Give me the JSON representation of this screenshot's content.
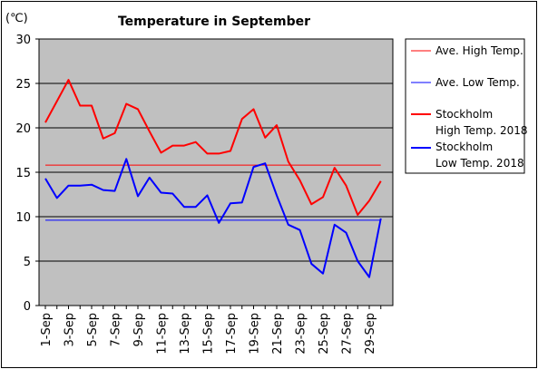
{
  "chart_data": {
    "type": "line",
    "title": "Temperature in September",
    "unit": "(℃)",
    "xlabel": "",
    "ylabel": "",
    "ylim": [
      0,
      30
    ],
    "yticks": [
      "0",
      "5",
      "10",
      "15",
      "20",
      "25",
      "30"
    ],
    "x": [
      1,
      2,
      3,
      4,
      5,
      6,
      7,
      8,
      9,
      10,
      11,
      12,
      13,
      14,
      15,
      16,
      17,
      18,
      19,
      20,
      21,
      22,
      23,
      24,
      25,
      26,
      27,
      28,
      29,
      30
    ],
    "xtick_labels": [
      "1-Sep",
      "3-Sep",
      "5-Sep",
      "7-Sep",
      "9-Sep",
      "11-Sep",
      "13-Sep",
      "15-Sep",
      "17-Sep",
      "19-Sep",
      "21-Sep",
      "23-Sep",
      "25-Sep",
      "27-Sep",
      "29-Sep"
    ],
    "grid": "horizontal",
    "legend_position": "right",
    "background": "#c0c0c0",
    "series": [
      {
        "name": "Ave. High Temp.",
        "color": "#ff0000",
        "width": 1,
        "values": [
          15.8,
          15.8,
          15.8,
          15.8,
          15.8,
          15.8,
          15.8,
          15.8,
          15.8,
          15.8,
          15.8,
          15.8,
          15.8,
          15.8,
          15.8,
          15.8,
          15.8,
          15.8,
          15.8,
          15.8,
          15.8,
          15.8,
          15.8,
          15.8,
          15.8,
          15.8,
          15.8,
          15.8,
          15.8,
          15.8
        ]
      },
      {
        "name": "Ave. Low Temp.",
        "color": "#0000ff",
        "width": 1,
        "values": [
          9.6,
          9.6,
          9.6,
          9.6,
          9.6,
          9.6,
          9.6,
          9.6,
          9.6,
          9.6,
          9.6,
          9.6,
          9.6,
          9.6,
          9.6,
          9.6,
          9.6,
          9.6,
          9.6,
          9.6,
          9.6,
          9.6,
          9.6,
          9.6,
          9.6,
          9.6,
          9.6,
          9.6,
          9.6,
          9.6
        ]
      },
      {
        "name": "Stockholm High Temp. 2018",
        "legend_lines": [
          "Stockholm",
          "High Temp. 2018"
        ],
        "color": "#ff0000",
        "width": 2,
        "values": [
          20.6,
          23.0,
          25.4,
          22.5,
          22.5,
          18.8,
          19.4,
          22.7,
          22.1,
          19.6,
          17.2,
          18.0,
          18.0,
          18.4,
          17.1,
          17.1,
          17.4,
          21.0,
          22.1,
          18.9,
          20.3,
          16.2,
          14.1,
          11.4,
          12.2,
          15.5,
          13.5,
          10.2,
          11.8,
          14.0
        ]
      },
      {
        "name": "Stockholm Low Temp. 2018",
        "legend_lines": [
          "Stockholm",
          "Low Temp. 2018"
        ],
        "color": "#0000ff",
        "width": 2,
        "values": [
          14.3,
          12.1,
          13.5,
          13.5,
          13.6,
          13.0,
          12.9,
          16.5,
          12.3,
          14.4,
          12.7,
          12.6,
          11.1,
          11.1,
          12.4,
          9.3,
          11.5,
          11.6,
          15.6,
          16.0,
          12.4,
          9.1,
          8.5,
          4.7,
          3.6,
          9.1,
          8.2,
          5.0,
          3.2,
          9.8
        ]
      }
    ]
  }
}
